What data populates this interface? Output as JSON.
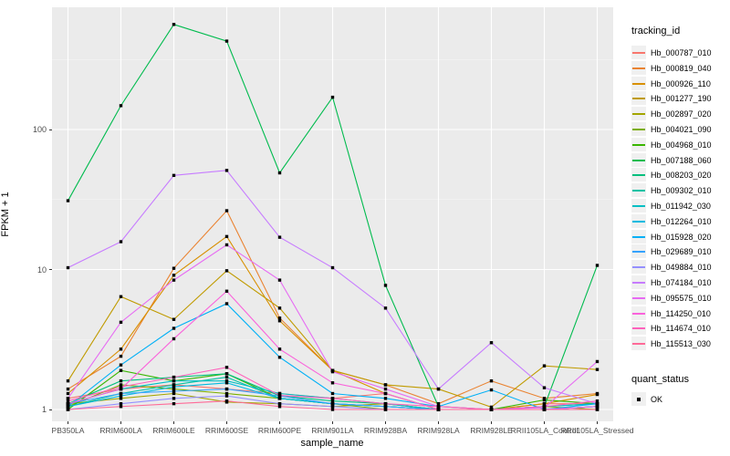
{
  "chart_data": {
    "type": "line",
    "title": "",
    "xlabel": "sample_name",
    "ylabel": "FPKM + 1",
    "y_scale": "log10",
    "y_ticks": [
      1,
      10,
      100
    ],
    "grid": true,
    "legend_position": "right",
    "x_categories": [
      "PB350LA",
      "RRIM600LA",
      "RRIM600LE",
      "RRIM600SE",
      "RRIM600PE",
      "RRIM901LA",
      "RRIM928BA",
      "RRIM928LA",
      "RRIM928LE",
      "RRII105LA_Control",
      "RRII105LA_Stressed"
    ],
    "marker": "black-square",
    "series": [
      {
        "name": "Hb_000787_010",
        "color": "#F8766D",
        "values": [
          1.2,
          1.4,
          1.5,
          1.4,
          1.3,
          1.2,
          1.3,
          1.0,
          1.0,
          1.1,
          1.1
        ]
      },
      {
        "name": "Hb_000819_040",
        "color": "#EA8331",
        "values": [
          1.4,
          2.4,
          10.2,
          26.3,
          4.5,
          1.9,
          1.5,
          1.1,
          1.6,
          1.2,
          1.3
        ]
      },
      {
        "name": "Hb_000926_110",
        "color": "#D89000",
        "values": [
          1.3,
          2.7,
          9.1,
          17.2,
          4.3,
          1.9,
          1.3,
          1.0,
          1.0,
          1.1,
          1.28
        ]
      },
      {
        "name": "Hb_001277_190",
        "color": "#C09B00",
        "values": [
          1.6,
          6.4,
          4.4,
          9.8,
          5.3,
          1.9,
          1.5,
          1.4,
          1.04,
          2.05,
          1.93
        ]
      },
      {
        "name": "Hb_002897_020",
        "color": "#A3A500",
        "values": [
          1.1,
          1.2,
          1.3,
          1.13,
          1.1,
          1.05,
          1.1,
          1.0,
          1.0,
          1.05,
          1.0
        ]
      },
      {
        "name": "Hb_004021_090",
        "color": "#7CAE00",
        "values": [
          1.05,
          1.5,
          1.4,
          1.3,
          1.2,
          1.1,
          1.0,
          1.0,
          1.0,
          1.0,
          1.05
        ]
      },
      {
        "name": "Hb_004968_010",
        "color": "#39B600",
        "values": [
          1.0,
          1.9,
          1.6,
          1.8,
          1.2,
          1.1,
          1.05,
          1.0,
          1.0,
          1.17,
          1.1
        ]
      },
      {
        "name": "Hb_007188_060",
        "color": "#00BB4E",
        "values": [
          31,
          148,
          563,
          428,
          49,
          170,
          7.7,
          1.05,
          1.0,
          1.05,
          10.7
        ]
      },
      {
        "name": "Hb_008203_020",
        "color": "#00BF7D",
        "values": [
          1.1,
          1.6,
          1.7,
          1.8,
          1.25,
          1.15,
          1.1,
          1.0,
          1.0,
          1.05,
          1.1
        ]
      },
      {
        "name": "Hb_009302_010",
        "color": "#00C1A3",
        "values": [
          1.05,
          1.3,
          1.5,
          1.7,
          1.2,
          1.1,
          1.05,
          1.0,
          1.0,
          1.0,
          1.05
        ]
      },
      {
        "name": "Hb_011942_030",
        "color": "#00BFC4",
        "values": [
          1.1,
          1.4,
          1.6,
          1.6,
          1.3,
          1.2,
          1.1,
          1.0,
          1.0,
          1.05,
          1.1
        ]
      },
      {
        "name": "Hb_012264_010",
        "color": "#00BAE0",
        "values": [
          1.05,
          1.25,
          1.45,
          1.55,
          1.2,
          1.1,
          1.05,
          1.0,
          1.0,
          1.0,
          1.05
        ]
      },
      {
        "name": "Hb_015928_020",
        "color": "#00B0F6",
        "values": [
          1.05,
          2.08,
          3.8,
          5.7,
          2.36,
          1.3,
          1.2,
          1.05,
          1.38,
          1.0,
          1.1
        ]
      },
      {
        "name": "Hb_029689_010",
        "color": "#35A2FF",
        "values": [
          1.1,
          1.3,
          1.35,
          1.4,
          1.25,
          1.1,
          1.05,
          1.0,
          1.0,
          1.0,
          1.05
        ]
      },
      {
        "name": "Hb_049884_010",
        "color": "#9590FF",
        "values": [
          1.0,
          1.1,
          1.2,
          1.25,
          1.1,
          1.05,
          1.0,
          1.0,
          1.0,
          1.0,
          1.0
        ]
      },
      {
        "name": "Hb_074184_010",
        "color": "#C77CFF",
        "values": [
          10.3,
          15.8,
          47,
          51,
          17,
          10.3,
          5.3,
          1.4,
          3.0,
          1.43,
          1.1
        ]
      },
      {
        "name": "Hb_095575_010",
        "color": "#E76BF3",
        "values": [
          1.2,
          4.2,
          8.4,
          15.0,
          8.4,
          1.86,
          1.4,
          1.05,
          1.0,
          1.03,
          2.2
        ]
      },
      {
        "name": "Hb_114250_010",
        "color": "#FA62DB",
        "values": [
          1.1,
          1.4,
          3.2,
          7.0,
          2.7,
          1.55,
          1.3,
          1.0,
          1.0,
          1.0,
          1.05
        ]
      },
      {
        "name": "Hb_114674_010",
        "color": "#FF62BC",
        "values": [
          1.15,
          1.45,
          1.7,
          2.0,
          1.26,
          1.2,
          1.1,
          1.05,
          1.0,
          1.05,
          1.15
        ]
      },
      {
        "name": "Hb_115513_030",
        "color": "#FF6A98",
        "values": [
          1.0,
          1.05,
          1.1,
          1.15,
          1.05,
          1.0,
          1.0,
          1.0,
          1.0,
          1.0,
          1.0
        ]
      }
    ],
    "legend": {
      "tracking_title": "tracking_id",
      "quant_title": "quant_status",
      "quant_items": [
        {
          "label": "OK"
        }
      ]
    }
  },
  "colors": {
    "panel_bg": "#EBEBEB",
    "grid_major": "#FFFFFF",
    "grid_minor": "#F5F5F5",
    "tick_text": "#4d4d4d",
    "axis_text": "#000000",
    "marker": "#000000",
    "legend_key_bg": "#F0F0F0"
  }
}
